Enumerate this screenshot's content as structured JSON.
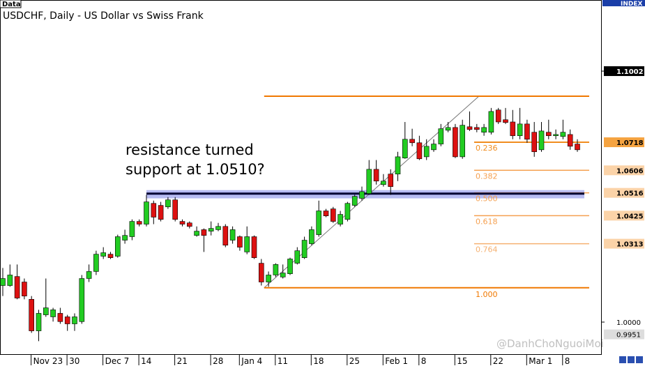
{
  "chart_data": {
    "type": "candlestick",
    "tag": "Data",
    "title": "USDCHF, Daily - US Dollar vs Swiss Frank",
    "index_label": "INDEX",
    "ylim": [
      0.9872,
      1.1286
    ],
    "yticks": [
      {
        "value": 1.1002,
        "label": "1.1002"
      },
      {
        "value": 1.0,
        "label": "1.0000"
      }
    ],
    "categories": [
      null,
      null,
      "Nov 23",
      null,
      null,
      null,
      null,
      "30",
      null,
      null,
      null,
      null,
      "Dec 7",
      null,
      null,
      null,
      null,
      "14",
      null,
      null,
      null,
      null,
      "21",
      null,
      null,
      null,
      null,
      "28",
      null,
      null,
      null,
      "Jan 4",
      null,
      null,
      null,
      null,
      "11",
      null,
      null,
      null,
      null,
      "18",
      null,
      null,
      null,
      null,
      "25",
      null,
      null,
      null,
      null,
      "Feb 1",
      null,
      null,
      null,
      null,
      "8",
      null,
      null,
      null,
      null,
      "15",
      null,
      null,
      null,
      null,
      "22",
      null,
      null,
      null,
      null,
      "Mar 1",
      null,
      null,
      null,
      null,
      "8",
      null,
      null,
      null,
      null
    ],
    "up_color": "#22cc22",
    "down_color": "#dd1111",
    "open": [
      1.0146,
      1.0146,
      1.0182,
      1.016,
      1.0091,
      0.9965,
      1.0029,
      1.0021,
      1.0035,
      1.0021,
      0.9993,
      1.0002,
      1.0174,
      1.0202,
      1.0263,
      1.0271,
      1.0263,
      1.0327,
      1.0341,
      1.0402,
      1.0391,
      1.0474,
      1.0466,
      1.046,
      1.0488,
      1.0402,
      1.0396,
      1.0346,
      1.0369,
      1.0363,
      1.0369,
      1.0382,
      1.0327,
      1.0341,
      1.028,
      1.0341,
      1.0235,
      1.016,
      1.0188,
      1.018,
      1.0193,
      1.0235,
      1.0257,
      1.0313,
      1.0349,
      1.0444,
      1.0452,
      1.0391,
      1.041,
      1.0466,
      1.0494,
      1.0513,
      1.061,
      1.0549,
      1.0591,
      1.0591,
      1.0655,
      1.073,
      1.0716,
      1.066,
      1.0688,
      1.0711,
      1.0766,
      1.0777,
      1.066,
      1.078,
      1.0777,
      1.0758,
      1.0758,
      1.0847,
      1.0808,
      1.0799,
      1.0744,
      1.0791,
      1.0758,
      1.0688,
      1.0758,
      1.0744,
      1.0741,
      1.0749,
      1.0711
    ],
    "high": [
      1.0216,
      1.023,
      1.023,
      1.0174,
      1.0104,
      1.0049,
      1.0174,
      1.0057,
      1.0057,
      1.0029,
      1.0035,
      1.0188,
      1.023,
      1.0285,
      1.0299,
      1.028,
      1.0349,
      1.0369,
      1.041,
      1.041,
      1.0508,
      1.0485,
      1.048,
      1.0499,
      1.0499,
      1.041,
      1.0402,
      1.0382,
      1.0374,
      1.0402,
      1.0396,
      1.0391,
      1.0382,
      1.0346,
      1.0382,
      1.0346,
      1.0252,
      1.0202,
      1.0235,
      1.023,
      1.0257,
      1.0299,
      1.0341,
      1.0382,
      1.0485,
      1.0452,
      1.046,
      1.0444,
      1.048,
      1.0508,
      1.0541,
      1.0647,
      1.0647,
      1.0591,
      1.061,
      1.068,
      1.0799,
      1.0772,
      1.0744,
      1.073,
      1.073,
      1.0791,
      1.0799,
      1.0791,
      1.0808,
      1.0841,
      1.0791,
      1.0791,
      1.0855,
      1.0855,
      1.0855,
      1.0847,
      1.0855,
      1.0808,
      1.0799,
      1.0799,
      1.0808,
      1.0769,
      1.0808,
      1.0769,
      1.073
    ],
    "low": [
      1.0104,
      1.0141,
      1.0091,
      1.0091,
      0.9957,
      0.9924,
      1.0021,
      1.0002,
      0.9993,
      0.9965,
      0.9965,
      0.9993,
      1.016,
      1.0188,
      1.0252,
      1.0252,
      1.0257,
      1.0313,
      1.0327,
      1.0382,
      1.0382,
      1.0391,
      1.0402,
      1.0452,
      1.0402,
      1.0382,
      1.0374,
      1.0341,
      1.028,
      1.0346,
      1.0363,
      1.0299,
      1.0313,
      1.0285,
      1.0271,
      1.0252,
      1.0146,
      1.0141,
      1.018,
      1.0174,
      1.0188,
      1.023,
      1.0252,
      1.0307,
      1.0341,
      1.0419,
      1.0396,
      1.0382,
      1.0402,
      1.046,
      1.0485,
      1.0508,
      1.0549,
      1.0541,
      1.0508,
      1.0563,
      1.0652,
      1.0702,
      1.0647,
      1.0647,
      1.068,
      1.0702,
      1.0758,
      1.0655,
      1.0652,
      1.0763,
      1.0758,
      1.0744,
      1.0749,
      1.0791,
      1.0791,
      1.073,
      1.073,
      1.0716,
      1.066,
      1.068,
      1.073,
      1.073,
      1.073,
      1.0688,
      1.068
    ],
    "close": [
      1.0174,
      1.0188,
      1.0096,
      1.0104,
      0.9965,
      1.0035,
      1.0057,
      1.0049,
      1.0002,
      0.9993,
      1.0021,
      1.0174,
      1.0202,
      1.0271,
      1.0277,
      1.0257,
      1.0341,
      1.0346,
      1.0402,
      1.0391,
      1.048,
      1.0419,
      1.041,
      1.0488,
      1.041,
      1.0391,
      1.0382,
      1.0363,
      1.0346,
      1.0374,
      1.0382,
      1.0307,
      1.0369,
      1.0299,
      1.0341,
      1.0257,
      1.016,
      1.0188,
      1.023,
      1.0196,
      1.0252,
      1.0285,
      1.0327,
      1.0369,
      1.0444,
      1.0424,
      1.0402,
      1.043,
      1.0474,
      1.0502,
      1.0521,
      1.061,
      1.0563,
      1.0563,
      1.0541,
      1.066,
      1.073,
      1.0716,
      1.0652,
      1.0702,
      1.0711,
      1.0772,
      1.0777,
      1.066,
      1.0786,
      1.0769,
      1.0769,
      1.0777,
      1.0841,
      1.0799,
      1.0797,
      1.0744,
      1.0791,
      1.073,
      1.068,
      1.0763,
      1.0744,
      1.0749,
      1.0758,
      1.0702,
      1.0688
    ],
    "fibonacci": {
      "high": 1.0902,
      "low": 1.0137,
      "start": 36,
      "end": 66,
      "color": "#f07800",
      "levels": [
        {
          "ratio": "0.236",
          "price": {
            "value": 1.0718,
            "label": "1.0718"
          },
          "color": "#f08c1e",
          "box": "#f5a340"
        },
        {
          "ratio": "0.382",
          "price": {
            "value": 1.0606,
            "label": "1.0606"
          },
          "color": "#f5a050",
          "box": "#fbd3a8"
        },
        {
          "ratio": "0.500",
          "price": {
            "value": 1.0516,
            "label": "1.0516"
          },
          "color": "#f5a050",
          "box": "#fbd3a8"
        },
        {
          "ratio": "0.618",
          "price": {
            "value": 1.0425,
            "label": "1.0425"
          },
          "color": "#f5a050",
          "box": "#fbd3a8"
        },
        {
          "ratio": "0.764",
          "price": {
            "value": 1.0313,
            "label": "1.0313"
          },
          "color": "#f5b070",
          "box": "#fbd3a8"
        },
        {
          "ratio": "1.000",
          "price": {
            "value": 1.0137,
            "label": null
          },
          "color": "#f07800",
          "box": null
        }
      ]
    },
    "low_marker": {
      "value": 0.9951,
      "label": "0.9951"
    },
    "support": {
      "price": 1.0513,
      "zone": [
        1.0494,
        1.0527
      ],
      "start": 20,
      "line_color": "#000033",
      "zone_color": "#aab0f0"
    },
    "annotation": [
      "resistance turned",
      "support at 1.0510?"
    ],
    "watermark": "@DanhChoNguoiMoi"
  }
}
